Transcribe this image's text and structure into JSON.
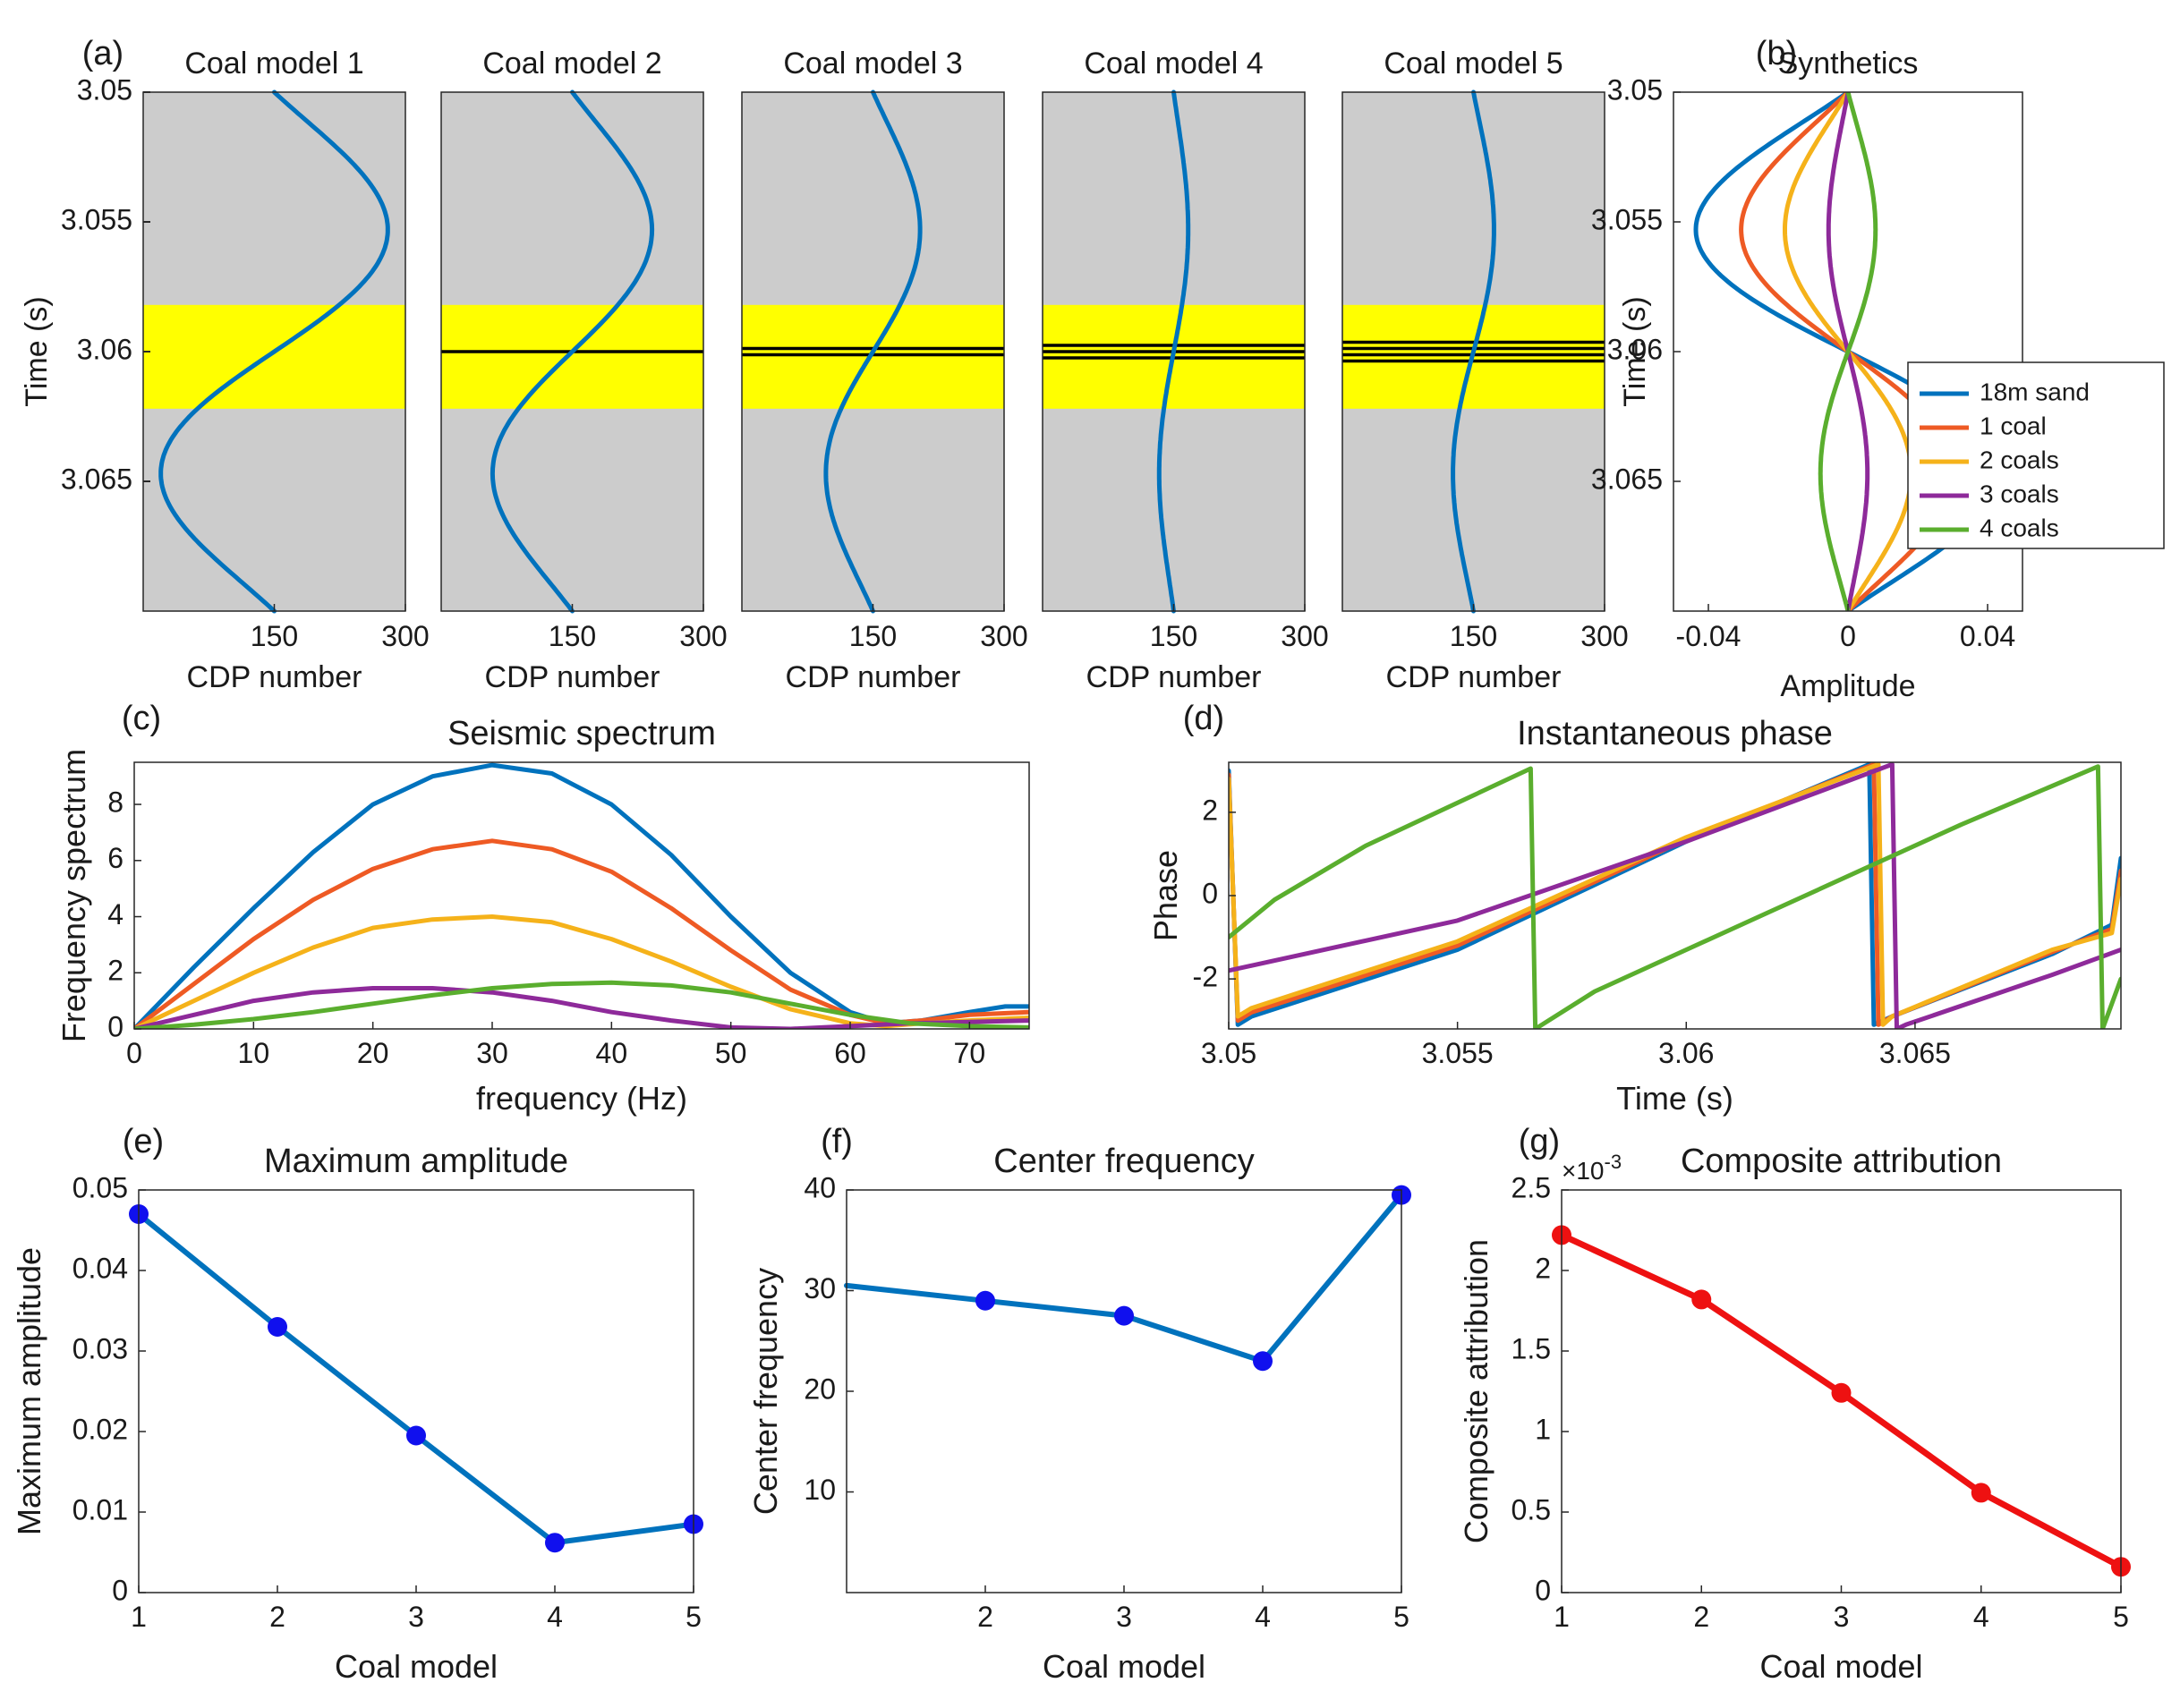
{
  "colors": {
    "sand": "#0072BD",
    "coal1": "#EE5A24",
    "coal2": "#F5B21A",
    "coal3": "#8E2A9A",
    "coal4": "#5AAE2E",
    "panel_bg": "#CCCCCC",
    "coal_band": "#FFFF00",
    "marker_blue": "#1010EE",
    "line_red": "#EE1111"
  },
  "chart_data": [
    {
      "id": "a",
      "type": "line",
      "panel_label": "(a)",
      "subplots": [
        {
          "title": "Coal model 1",
          "amplitude": 0.047,
          "coal_lines": 0
        },
        {
          "title": "Coal model 2",
          "amplitude": 0.033,
          "coal_lines": 1
        },
        {
          "title": "Coal model 3",
          "amplitude": 0.0195,
          "coal_lines": 2
        },
        {
          "title": "Coal model 4",
          "amplitude": 0.006,
          "coal_lines": 3
        },
        {
          "title": "Coal model 5",
          "amplitude": 0.0085,
          "coal_lines": 4
        }
      ],
      "ylabel": "Time (s)",
      "xlabel": "CDP number",
      "xticks": [
        "150",
        "300"
      ],
      "xlim": [
        0,
        300
      ],
      "ylim": [
        3.05,
        3.07
      ],
      "yticks": [
        "3.05",
        "3.055",
        "3.06",
        "3.065"
      ],
      "coal_band": [
        3.0582,
        3.0622
      ]
    },
    {
      "id": "b",
      "type": "line",
      "panel_label": "(b)",
      "title": "Synthetics",
      "xlabel": "Amplitude",
      "ylabel": "Time (s)",
      "xlim": [
        -0.05,
        0.05
      ],
      "xticks": [
        "-0.04",
        "0",
        "0.04"
      ],
      "ylim": [
        3.05,
        3.07
      ],
      "yticks": [
        "3.05",
        "3.055",
        "3.06",
        "3.065"
      ],
      "legend_position": "right",
      "series": [
        {
          "name": "18m sand",
          "amplitude": 0.047
        },
        {
          "name": "1 coal",
          "amplitude": 0.033
        },
        {
          "name": "2 coals",
          "amplitude": 0.0195
        },
        {
          "name": "3 coals",
          "amplitude": 0.006
        },
        {
          "name": "4 coals",
          "amplitude": -0.0085
        }
      ]
    },
    {
      "id": "c",
      "type": "line",
      "panel_label": "(c)",
      "title": "Seismic spectrum",
      "xlabel": "frequency (Hz)",
      "ylabel": "Frequency spectrum",
      "xlim": [
        0,
        75
      ],
      "ylim": [
        0,
        9.5
      ],
      "xticks": [
        "0",
        "10",
        "20",
        "30",
        "40",
        "50",
        "60",
        "70"
      ],
      "yticks": [
        "0",
        "2",
        "4",
        "6",
        "8"
      ],
      "series": [
        {
          "name": "18m sand",
          "x": [
            0,
            5,
            10,
            15,
            20,
            25,
            30,
            35,
            40,
            45,
            50,
            55,
            60,
            63,
            66,
            70,
            73,
            75
          ],
          "y": [
            0,
            2.2,
            4.3,
            6.3,
            8.0,
            9.0,
            9.4,
            9.1,
            8.0,
            6.2,
            4.0,
            2.0,
            0.6,
            0.2,
            0.3,
            0.6,
            0.8,
            0.8
          ]
        },
        {
          "name": "1 coal",
          "x": [
            0,
            5,
            10,
            15,
            20,
            25,
            30,
            35,
            40,
            45,
            50,
            55,
            60,
            63,
            66,
            70,
            75
          ],
          "y": [
            0,
            1.6,
            3.2,
            4.6,
            5.7,
            6.4,
            6.7,
            6.4,
            5.6,
            4.3,
            2.8,
            1.4,
            0.5,
            0.2,
            0.3,
            0.5,
            0.6
          ]
        },
        {
          "name": "2 coals",
          "x": [
            0,
            5,
            10,
            15,
            20,
            25,
            30,
            35,
            40,
            45,
            50,
            55,
            60,
            63,
            66,
            70,
            75
          ],
          "y": [
            0,
            1.0,
            2.0,
            2.9,
            3.6,
            3.9,
            4.0,
            3.8,
            3.2,
            2.4,
            1.5,
            0.7,
            0.2,
            0.1,
            0.2,
            0.3,
            0.4
          ]
        },
        {
          "name": "3 coals",
          "x": [
            0,
            5,
            10,
            15,
            20,
            25,
            30,
            35,
            40,
            45,
            50,
            55,
            60,
            65,
            70,
            75
          ],
          "y": [
            0,
            0.5,
            1.0,
            1.3,
            1.45,
            1.45,
            1.3,
            1.0,
            0.6,
            0.3,
            0.05,
            0.0,
            0.1,
            0.2,
            0.25,
            0.3
          ]
        },
        {
          "name": "4 coals",
          "x": [
            0,
            5,
            10,
            15,
            20,
            25,
            30,
            35,
            40,
            45,
            50,
            55,
            60,
            65,
            70,
            75
          ],
          "y": [
            0,
            0.15,
            0.35,
            0.6,
            0.9,
            1.2,
            1.45,
            1.6,
            1.65,
            1.55,
            1.3,
            0.9,
            0.5,
            0.2,
            0.1,
            0.05
          ]
        }
      ]
    },
    {
      "id": "d",
      "type": "line",
      "panel_label": "(d)",
      "title": "Instantaneous phase",
      "xlabel": "Time (s)",
      "ylabel": "Phase",
      "xlim": [
        3.05,
        3.0695
      ],
      "ylim": [
        -3.2,
        3.2
      ],
      "xticks": [
        "3.05",
        "3.055",
        "3.06",
        "3.065"
      ],
      "yticks": [
        "-2",
        "0",
        "2"
      ],
      "series": [
        {
          "name": "18m sand",
          "x": [
            3.05,
            3.0502,
            3.0505,
            3.055,
            3.06,
            3.064,
            3.0641,
            3.0645,
            3.068,
            3.0693,
            3.0695
          ],
          "y": [
            3.0,
            -3.1,
            -2.9,
            -1.3,
            1.3,
            3.15,
            -3.1,
            -2.9,
            -1.4,
            -0.7,
            0.9
          ]
        },
        {
          "name": "1 coal",
          "x": [
            3.05,
            3.0502,
            3.0505,
            3.055,
            3.06,
            3.0641,
            3.0642,
            3.0645,
            3.068,
            3.0693,
            3.0695
          ],
          "y": [
            2.9,
            -3.0,
            -2.8,
            -1.2,
            1.35,
            3.15,
            -3.1,
            -2.9,
            -1.35,
            -0.8,
            0.6
          ]
        },
        {
          "name": "2 coals",
          "x": [
            3.05,
            3.0502,
            3.0505,
            3.055,
            3.06,
            3.0642,
            3.0643,
            3.0645,
            3.068,
            3.0693,
            3.0695
          ],
          "y": [
            2.8,
            -2.9,
            -2.7,
            -1.1,
            1.4,
            3.15,
            -3.1,
            -2.9,
            -1.3,
            -0.9,
            0.4
          ]
        },
        {
          "name": "3 coals",
          "x": [
            3.05,
            3.055,
            3.06,
            3.0645,
            3.0646,
            3.0648,
            3.068,
            3.0695
          ],
          "y": [
            -1.8,
            -0.6,
            1.3,
            3.15,
            -3.2,
            -3.1,
            -1.9,
            -1.3
          ]
        },
        {
          "name": "4 coals",
          "x": [
            3.05,
            3.051,
            3.053,
            3.0566,
            3.0567,
            3.058,
            3.062,
            3.066,
            3.069,
            3.0691,
            3.0695
          ],
          "y": [
            -1.0,
            -0.1,
            1.2,
            3.05,
            -3.2,
            -2.3,
            -0.3,
            1.7,
            3.1,
            -3.2,
            -2.0
          ]
        }
      ]
    },
    {
      "id": "e",
      "type": "line",
      "panel_label": "(e)",
      "title": "Maximum amplitude",
      "xlabel": "Coal model",
      "ylabel": "Maximum amplitude",
      "xlim": [
        1,
        5
      ],
      "ylim": [
        0,
        0.05
      ],
      "xticks": [
        "1",
        "2",
        "3",
        "4",
        "5"
      ],
      "yticks": [
        "0",
        "0.01",
        "0.02",
        "0.03",
        "0.04",
        "0.05"
      ],
      "x": [
        1,
        2,
        3,
        4,
        5
      ],
      "y": [
        0.047,
        0.033,
        0.0195,
        0.0062,
        0.0085
      ]
    },
    {
      "id": "f",
      "type": "line",
      "panel_label": "(f)",
      "title": "Center frequency",
      "xlabel": "Coal model",
      "ylabel": "Center frequency",
      "xlim": [
        1,
        5
      ],
      "ylim": [
        0,
        40
      ],
      "xticks": [
        "2",
        "3",
        "4",
        "5"
      ],
      "yticks": [
        "10",
        "20",
        "30",
        "40"
      ],
      "line_x": [
        1,
        2,
        3,
        4,
        5
      ],
      "line_y": [
        30.5,
        29.0,
        27.5,
        23.0,
        39.5
      ],
      "marker_x": [
        2,
        3,
        4,
        5
      ],
      "marker_y": [
        29.0,
        27.5,
        23.0,
        39.5
      ]
    },
    {
      "id": "g",
      "type": "line",
      "panel_label": "(g)",
      "title": "Composite attribution",
      "exponent": "×10",
      "exponent_power": "-3",
      "xlabel": "Coal model",
      "ylabel": "Composite attribution",
      "xlim": [
        1,
        5
      ],
      "ylim": [
        0,
        2.5
      ],
      "xticks": [
        "1",
        "2",
        "3",
        "4",
        "5"
      ],
      "yticks": [
        "0",
        "0.5",
        "1",
        "1.5",
        "2",
        "2.5"
      ],
      "x": [
        1,
        2,
        3,
        4,
        5
      ],
      "y": [
        2.22,
        1.82,
        1.24,
        0.62,
        0.16
      ]
    }
  ]
}
